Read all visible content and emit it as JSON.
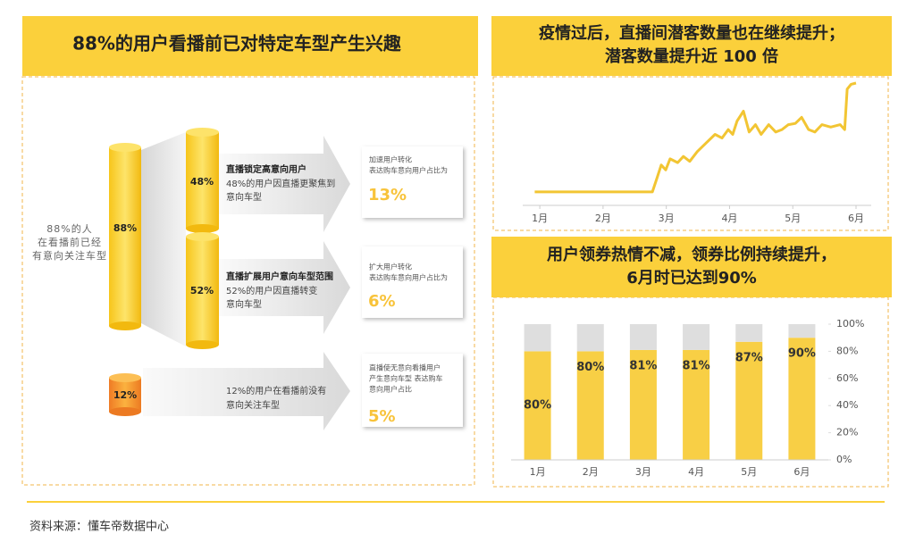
{
  "left_panel": {
    "title": "88%的用户看播前已对特定车型产生兴趣",
    "intro": [
      "88%的人",
      "在看播前已经",
      "有意向关注车型"
    ],
    "total": "88%",
    "rows": [
      {
        "pct": "48%",
        "heading": "直播锁定高意向用户",
        "desc": [
          "48%的用户因直播更聚焦到",
          "意向车型"
        ],
        "note": [
          "加速用户转化",
          "表达购车意向用户占比为"
        ],
        "result": "13%"
      },
      {
        "pct": "52%",
        "heading": "直播扩展用户意向车型范围",
        "desc": [
          "52%的用户因直播转变",
          "意向车型"
        ],
        "note": [
          "扩大用户转化",
          "表达购车意向用户占比为"
        ],
        "result": "6%"
      },
      {
        "pct": "12%",
        "desc": [
          "12%的用户在看播前没有",
          "意向关注车型"
        ],
        "note": [
          "直播使无意向看播用户",
          "产生意向车型 表达购车",
          "意向用户占比"
        ],
        "result": "5%"
      }
    ]
  },
  "chart_data": [
    {
      "type": "line",
      "title": [
        "疫情过后，直播间潜客数量也在继续提升；",
        "潜客数量提升近 100 倍"
      ],
      "color": "#f2c533",
      "x": [
        0.92,
        1.5,
        2.0,
        2.5,
        2.78,
        2.85,
        2.92,
        2.99,
        3.06,
        3.18,
        3.27,
        3.37,
        3.49,
        3.63,
        3.77,
        3.88,
        3.98,
        4.05,
        4.12,
        4.22,
        4.31,
        4.41,
        4.5,
        4.62,
        4.73,
        4.83,
        4.93,
        5.04,
        5.14,
        5.25,
        5.35,
        5.46,
        5.6,
        5.75,
        5.82,
        5.86,
        5.92,
        6.0
      ],
      "values": [
        11,
        11,
        11,
        11,
        11,
        22,
        33,
        29,
        38,
        35,
        40,
        36,
        44,
        51,
        58,
        55,
        62,
        58,
        69,
        77,
        60,
        66,
        58,
        66,
        60,
        62,
        66,
        67,
        72,
        62,
        60,
        66,
        64,
        66,
        62,
        95,
        99,
        100
      ],
      "xlim": [
        0.73,
        6.24
      ],
      "ylim": [
        0,
        100
      ],
      "xticks": [
        {
          "value": 1,
          "label": "1月"
        },
        {
          "value": 2,
          "label": "2月"
        },
        {
          "value": 3,
          "label": "3月"
        },
        {
          "value": 4,
          "label": "4月"
        },
        {
          "value": 5,
          "label": "5月"
        },
        {
          "value": 6,
          "label": "6月"
        }
      ]
    },
    {
      "type": "bar",
      "title": [
        "用户领券热情不减，领券比例持续提升，",
        "6月时已达到90%"
      ],
      "stacked": true,
      "categories": [
        "1月",
        "2月",
        "3月",
        "4月",
        "5月",
        "6月"
      ],
      "series": [
        {
          "color": "#f8cf45",
          "values": [
            80,
            80,
            81,
            81,
            87,
            90
          ],
          "value_labels": [
            "80%",
            "80%",
            "81%",
            "81%",
            "87%",
            "90%"
          ]
        },
        {
          "color": "#dedede",
          "values": [
            20,
            20,
            19,
            19,
            13,
            10
          ]
        }
      ],
      "ylim": [
        0,
        100
      ],
      "yticks": [
        {
          "value": 0,
          "label": "0%"
        },
        {
          "value": 20,
          "label": "20%"
        },
        {
          "value": 40,
          "label": "40%"
        },
        {
          "value": 60,
          "label": "60%"
        },
        {
          "value": 80,
          "label": "80%"
        },
        {
          "value": 100,
          "label": "100%"
        }
      ]
    }
  ],
  "footer": "资料来源：懂车帝数据中心"
}
